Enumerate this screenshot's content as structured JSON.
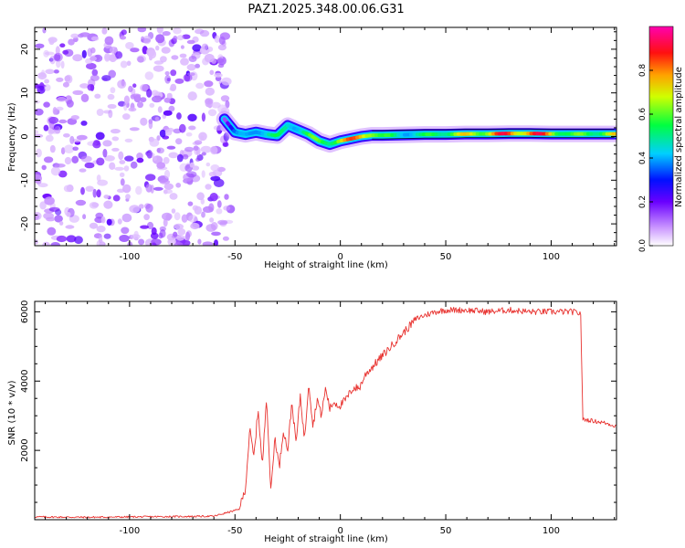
{
  "title": "PAZ1.2025.348.00.06.G31",
  "colors": {
    "snr_line": "#e8322f",
    "axis": "#000000",
    "scatter": "#8a2be2",
    "track_core": "#ff3030"
  },
  "chart_data": [
    {
      "type": "heatmap",
      "title": "PAZ1.2025.348.00.06.G31",
      "xlabel": "Height of straight line (km)",
      "ylabel": "Frequency (Hz)",
      "xlim": [
        -145,
        131
      ],
      "ylim": [
        -25,
        25
      ],
      "xticks": [
        -100,
        -50,
        0,
        50,
        100
      ],
      "yticks": [
        -20,
        -10,
        0,
        10,
        20
      ],
      "xtick_labels": [
        "-100",
        "-50",
        "0",
        "50",
        "100"
      ],
      "ytick_labels": [
        "-20",
        "-10",
        "0",
        "10",
        "20"
      ],
      "noise_region_km": [
        -145,
        -52
      ],
      "track": {
        "x": [
          -55,
          -50,
          -45,
          -40,
          -35,
          -30,
          -25,
          -20,
          -15,
          -10,
          -5,
          0,
          5,
          10,
          15,
          20,
          30,
          40,
          50,
          60,
          70,
          80,
          90,
          100,
          110,
          120,
          131
        ],
        "freq": [
          4,
          1,
          0.5,
          1,
          0.5,
          0.2,
          2.5,
          1.5,
          0.5,
          -1,
          -1.8,
          -1,
          -0.5,
          0,
          0.3,
          0.3,
          0.4,
          0.5,
          0.5,
          0.6,
          0.6,
          0.7,
          0.7,
          0.6,
          0.6,
          0.6,
          0.6
        ],
        "amplitude": [
          0.15,
          0.35,
          0.45,
          0.55,
          0.5,
          0.55,
          0.6,
          0.55,
          0.6,
          0.65,
          0.7,
          0.8,
          0.85,
          0.9,
          0.92,
          0.6,
          0.55,
          0.55,
          0.7,
          0.75,
          0.85,
          0.95,
          0.95,
          0.9,
          0.6,
          0.7,
          0.75
        ]
      },
      "colorbar": {
        "label": "Normalized spectral amplitude",
        "range": [
          0,
          1
        ],
        "ticks": [
          0.0,
          0.2,
          0.4,
          0.6,
          0.8
        ],
        "tick_labels": [
          "0.0",
          "0.2",
          "0.4",
          "0.6",
          "0.8"
        ]
      }
    },
    {
      "type": "line",
      "xlabel": "Height of straight line (km)",
      "ylabel": "SNR (10 * v/v)",
      "xlim": [
        -145,
        131
      ],
      "ylim": [
        0,
        6300
      ],
      "xticks": [
        -100,
        -50,
        0,
        50,
        100
      ],
      "yticks": [
        2000,
        4000,
        6000
      ],
      "xtick_labels": [
        "-100",
        "-50",
        "0",
        "50",
        "100"
      ],
      "ytick_labels": [
        "2000",
        "4000",
        "6000"
      ],
      "series": [
        {
          "name": "SNR",
          "x": [
            -145,
            -120,
            -100,
            -80,
            -60,
            -48,
            -45,
            -43,
            -41,
            -39,
            -37,
            -35,
            -33,
            -31,
            -29,
            -27,
            -25,
            -23,
            -21,
            -19,
            -17,
            -15,
            -13,
            -11,
            -9,
            -7,
            -5,
            -3,
            -1,
            0,
            3,
            6,
            9,
            12,
            15,
            18,
            21,
            24,
            27,
            30,
            33,
            36,
            40,
            45,
            50,
            60,
            70,
            80,
            90,
            100,
            110,
            114,
            115,
            120,
            125,
            131
          ],
          "y": [
            80,
            70,
            80,
            90,
            100,
            300,
            900,
            2600,
            1800,
            3200,
            1500,
            3600,
            800,
            2400,
            1500,
            2600,
            2000,
            3400,
            2200,
            3600,
            2300,
            4000,
            2700,
            3500,
            3000,
            3800,
            3200,
            3400,
            3300,
            3300,
            3500,
            3800,
            3800,
            4200,
            4400,
            4600,
            4800,
            5000,
            5200,
            5400,
            5600,
            5800,
            5900,
            6000,
            6050,
            6050,
            6000,
            6050,
            6000,
            6000,
            6000,
            5950,
            2900,
            2850,
            2800,
            2700
          ]
        }
      ]
    }
  ]
}
